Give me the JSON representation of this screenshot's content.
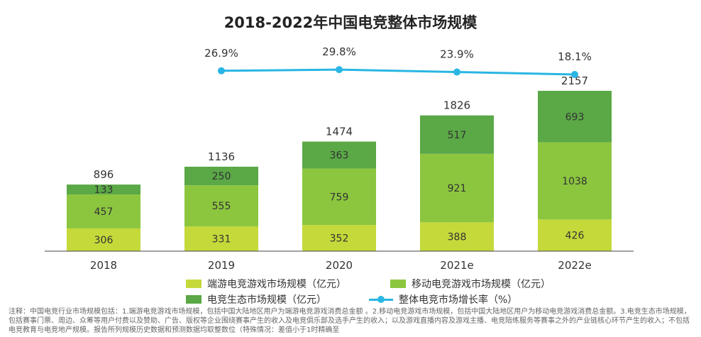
{
  "chart_data": {
    "type": "bar",
    "title": "2018-2022年中国电竞整体市场规模",
    "categories": [
      "2018",
      "2019",
      "2020",
      "2021e",
      "2022e"
    ],
    "series": [
      {
        "name": "端游电竞游戏市场规模（亿元）",
        "values": [
          306,
          331,
          352,
          388,
          426
        ],
        "color": "#c5d93a"
      },
      {
        "name": "移动电竞游戏市场规模（亿元）",
        "values": [
          457,
          555,
          759,
          921,
          1038
        ],
        "color": "#8cc63f"
      },
      {
        "name": "电竞生态市场规模（亿元）",
        "values": [
          133,
          250,
          363,
          517,
          693
        ],
        "color": "#5aa846"
      }
    ],
    "totals": [
      896,
      1136,
      1474,
      1826,
      2157
    ],
    "growth_rate": {
      "name": "整体电竞市场增长率（%）",
      "values": [
        26.9,
        29.8,
        23.9,
        18.1
      ],
      "labels": [
        "26.9%",
        "29.8%",
        "23.9%",
        "18.1%"
      ],
      "categories": [
        "2019",
        "2020",
        "2021e",
        "2022e"
      ],
      "color": "#29b6e4"
    },
    "stacked": true,
    "legend_position": "bottom",
    "grid": false
  },
  "note": "注释：中国电竞行业市场规模包括：1.端游电竞游戏市场规模，包括中国大陆地区用户为端游电竞游戏消费总金额 。2.移动电竞游戏市场规模，包括中国大陆地区用户为移动电竞游戏消费总金额。3.电竞生态市场规模，包括赛事门票、周边、众筹等用户付费以及赞助、广告、版权等企业围绕赛事产生的收入及电竞俱乐部及选手产生的收入；以及游戏直播内容及游戏主播、电竞陪练服务等赛事之外的产业链核心环节产生的收入；不包括电竞教育与电竞地产规模。报告所列规模历史数据和预测数据均取整数位（特殊情况：差值小于1时精确至"
}
